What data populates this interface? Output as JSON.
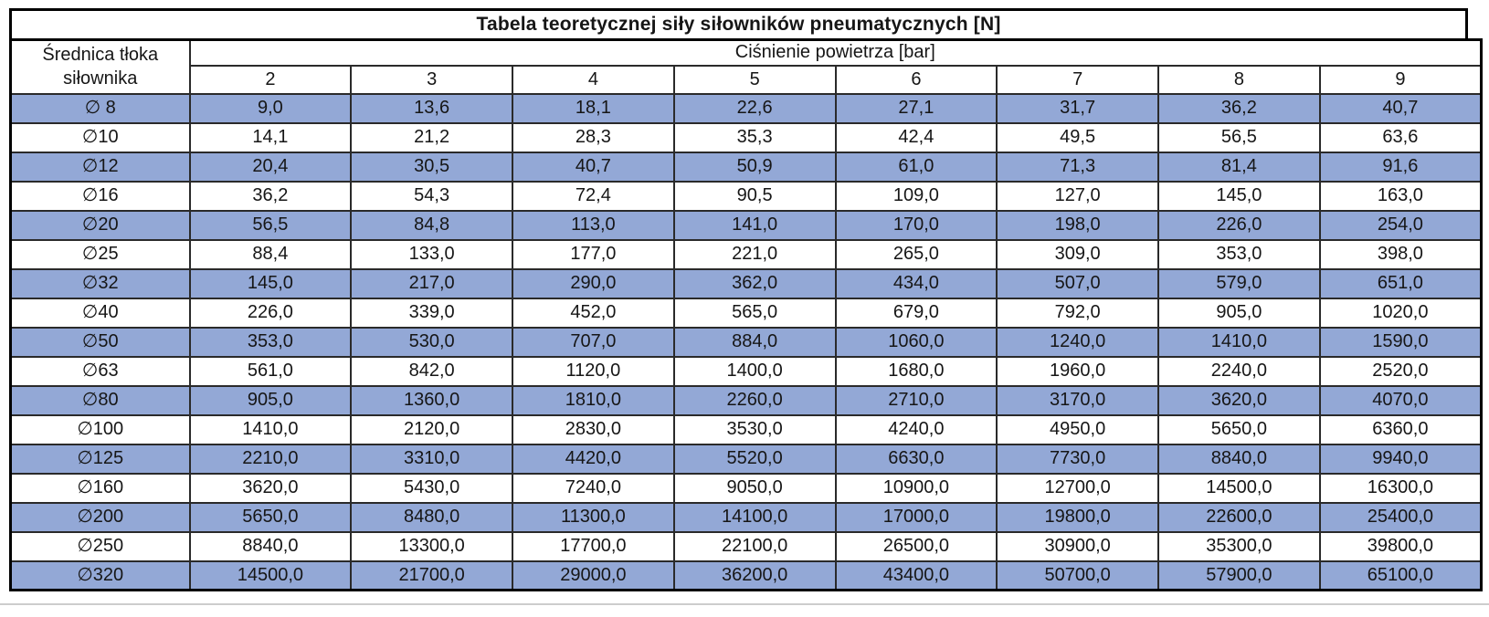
{
  "title": "Tabela teoretycznej siły siłowników pneumatycznych [N]",
  "headers": {
    "diameter_line1": "Średnica tłoka",
    "diameter_line2": "siłownika",
    "pressure_group": "Ciśnienie powietrza [bar]"
  },
  "pressures": [
    "2",
    "3",
    "4",
    "5",
    "6",
    "7",
    "8",
    "9"
  ],
  "rows": [
    {
      "diameter": "∅ 8",
      "values": [
        "9,0",
        "13,6",
        "18,1",
        "22,6",
        "27,1",
        "31,7",
        "36,2",
        "40,7"
      ]
    },
    {
      "diameter": "∅10",
      "values": [
        "14,1",
        "21,2",
        "28,3",
        "35,3",
        "42,4",
        "49,5",
        "56,5",
        "63,6"
      ]
    },
    {
      "diameter": "∅12",
      "values": [
        "20,4",
        "30,5",
        "40,7",
        "50,9",
        "61,0",
        "71,3",
        "81,4",
        "91,6"
      ]
    },
    {
      "diameter": "∅16",
      "values": [
        "36,2",
        "54,3",
        "72,4",
        "90,5",
        "109,0",
        "127,0",
        "145,0",
        "163,0"
      ]
    },
    {
      "diameter": "∅20",
      "values": [
        "56,5",
        "84,8",
        "113,0",
        "141,0",
        "170,0",
        "198,0",
        "226,0",
        "254,0"
      ]
    },
    {
      "diameter": "∅25",
      "values": [
        "88,4",
        "133,0",
        "177,0",
        "221,0",
        "265,0",
        "309,0",
        "353,0",
        "398,0"
      ]
    },
    {
      "diameter": "∅32",
      "values": [
        "145,0",
        "217,0",
        "290,0",
        "362,0",
        "434,0",
        "507,0",
        "579,0",
        "651,0"
      ]
    },
    {
      "diameter": "∅40",
      "values": [
        "226,0",
        "339,0",
        "452,0",
        "565,0",
        "679,0",
        "792,0",
        "905,0",
        "1020,0"
      ]
    },
    {
      "diameter": "∅50",
      "values": [
        "353,0",
        "530,0",
        "707,0",
        "884,0",
        "1060,0",
        "1240,0",
        "1410,0",
        "1590,0"
      ]
    },
    {
      "diameter": "∅63",
      "values": [
        "561,0",
        "842,0",
        "1120,0",
        "1400,0",
        "1680,0",
        "1960,0",
        "2240,0",
        "2520,0"
      ]
    },
    {
      "diameter": "∅80",
      "values": [
        "905,0",
        "1360,0",
        "1810,0",
        "2260,0",
        "2710,0",
        "3170,0",
        "3620,0",
        "4070,0"
      ]
    },
    {
      "diameter": "∅100",
      "values": [
        "1410,0",
        "2120,0",
        "2830,0",
        "3530,0",
        "4240,0",
        "4950,0",
        "5650,0",
        "6360,0"
      ]
    },
    {
      "diameter": "∅125",
      "values": [
        "2210,0",
        "3310,0",
        "4420,0",
        "5520,0",
        "6630,0",
        "7730,0",
        "8840,0",
        "9940,0"
      ]
    },
    {
      "diameter": "∅160",
      "values": [
        "3620,0",
        "5430,0",
        "7240,0",
        "9050,0",
        "10900,0",
        "12700,0",
        "14500,0",
        "16300,0"
      ]
    },
    {
      "diameter": "∅200",
      "values": [
        "5650,0",
        "8480,0",
        "11300,0",
        "14100,0",
        "17000,0",
        "19800,0",
        "22600,0",
        "25400,0"
      ]
    },
    {
      "diameter": "∅250",
      "values": [
        "8840,0",
        "13300,0",
        "17700,0",
        "22100,0",
        "26500,0",
        "30900,0",
        "35300,0",
        "39800,0"
      ]
    },
    {
      "diameter": "∅320",
      "values": [
        "14500,0",
        "21700,0",
        "29000,0",
        "36200,0",
        "43400,0",
        "50700,0",
        "57900,0",
        "65100,0"
      ]
    }
  ],
  "colors": {
    "row_highlight": "#93A8D6",
    "grid_line": "#2a2a2a",
    "outer_border": "#000000"
  }
}
